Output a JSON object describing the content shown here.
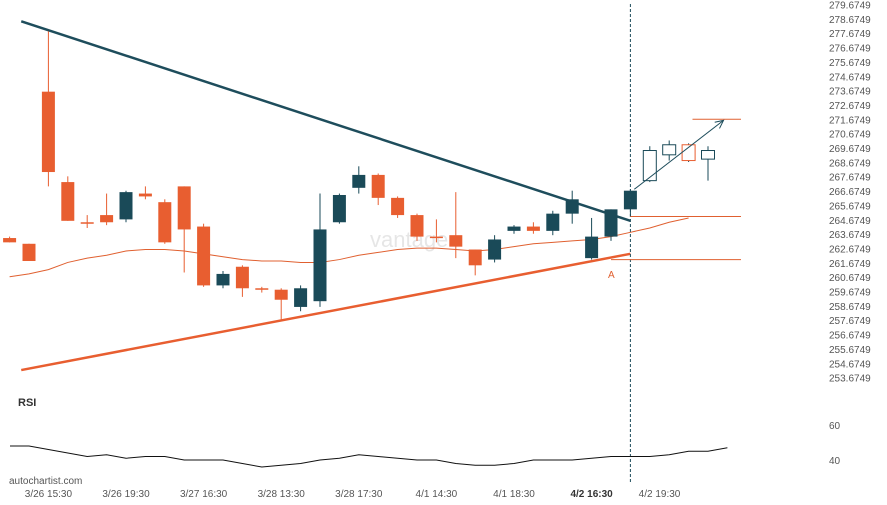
{
  "chart_data": {
    "type": "candlestick",
    "watermark": "vantage",
    "brand": "autochartist.com",
    "price_axis": {
      "ylim": [
        252.6749,
        279.9749
      ],
      "tick_labels": [
        "279.6749",
        "278.6749",
        "277.6749",
        "276.6749",
        "275.6749",
        "274.6749",
        "273.6749",
        "272.6749",
        "271.6749",
        "270.6749",
        "269.6749",
        "268.6749",
        "267.6749",
        "266.6749",
        "265.6749",
        "264.6749",
        "263.6749",
        "262.6749",
        "261.6749",
        "260.6749",
        "259.6749",
        "258.6749",
        "257.6749",
        "256.6749",
        "255.6749",
        "254.6749",
        "253.6749"
      ]
    },
    "time_axis": {
      "tick_labels": [
        {
          "label": "3/26 15:30",
          "index": 2
        },
        {
          "label": "3/26 19:30",
          "index": 6
        },
        {
          "label": "3/27 16:30",
          "index": 10
        },
        {
          "label": "3/28 13:30",
          "index": 14
        },
        {
          "label": "3/28 17:30",
          "index": 18
        },
        {
          "label": "4/1 14:30",
          "index": 22
        },
        {
          "label": "4/1 18:30",
          "index": 26
        },
        {
          "label": "4/2 16:30",
          "index": 30,
          "bold": true
        },
        {
          "label": "4/2 19:30",
          "index": 33.5
        }
      ]
    },
    "candles": [
      {
        "o": 263.4,
        "h": 263.5,
        "c": 263.1,
        "l": 263.1
      },
      {
        "o": 263.0,
        "h": 263.0,
        "c": 261.8,
        "l": 261.8
      },
      {
        "o": 273.6,
        "h": 277.8,
        "c": 268.0,
        "l": 267.0
      },
      {
        "o": 267.3,
        "h": 267.7,
        "c": 264.6,
        "l": 264.6
      },
      {
        "o": 264.5,
        "h": 265.0,
        "c": 264.4,
        "l": 264.1
      },
      {
        "o": 265.0,
        "h": 266.5,
        "c": 264.5,
        "l": 264.3
      },
      {
        "o": 264.7,
        "h": 266.7,
        "c": 266.6,
        "l": 264.5
      },
      {
        "o": 266.5,
        "h": 267.0,
        "c": 266.3,
        "l": 266.1
      },
      {
        "o": 265.9,
        "h": 266.1,
        "c": 263.1,
        "l": 263.0
      },
      {
        "o": 267.0,
        "h": 267.0,
        "c": 264.0,
        "l": 261.0
      },
      {
        "o": 264.2,
        "h": 264.4,
        "c": 260.1,
        "l": 260.0
      },
      {
        "o": 260.1,
        "h": 261.1,
        "c": 260.9,
        "l": 259.9
      },
      {
        "o": 261.4,
        "h": 261.5,
        "c": 259.9,
        "l": 259.3
      },
      {
        "o": 259.9,
        "h": 260.0,
        "c": 259.8,
        "l": 259.6
      },
      {
        "o": 259.8,
        "h": 259.9,
        "c": 259.1,
        "l": 257.6
      },
      {
        "o": 258.6,
        "h": 260.1,
        "c": 259.9,
        "l": 258.3
      },
      {
        "o": 259.0,
        "h": 266.5,
        "c": 264.0,
        "l": 258.6
      },
      {
        "o": 264.5,
        "h": 266.5,
        "c": 266.4,
        "l": 264.4
      },
      {
        "o": 266.9,
        "h": 268.4,
        "c": 267.8,
        "l": 266.5
      },
      {
        "o": 267.8,
        "h": 267.9,
        "c": 266.2,
        "l": 265.7
      },
      {
        "o": 266.2,
        "h": 266.3,
        "c": 265.0,
        "l": 264.8
      },
      {
        "o": 265.0,
        "h": 265.1,
        "c": 263.5,
        "l": 263.2
      },
      {
        "o": 263.5,
        "h": 264.7,
        "c": 263.4,
        "l": 263.1
      },
      {
        "o": 263.6,
        "h": 266.6,
        "c": 262.8,
        "l": 262.0
      },
      {
        "o": 262.6,
        "h": 262.6,
        "c": 261.5,
        "l": 260.8
      },
      {
        "o": 261.9,
        "h": 263.6,
        "c": 263.3,
        "l": 261.7
      },
      {
        "o": 263.9,
        "h": 264.3,
        "c": 264.2,
        "l": 263.7
      },
      {
        "o": 264.2,
        "h": 264.5,
        "c": 263.9,
        "l": 263.7
      },
      {
        "o": 263.9,
        "h": 265.3,
        "c": 265.1,
        "l": 263.6
      },
      {
        "o": 265.1,
        "h": 266.7,
        "c": 266.1,
        "l": 264.4
      },
      {
        "o": 262.0,
        "h": 264.8,
        "c": 263.5,
        "l": 261.9
      },
      {
        "o": 263.5,
        "h": 265.4,
        "c": 265.4,
        "l": 263.2
      },
      {
        "o": 265.4,
        "h": 266.8,
        "c": 266.7,
        "l": 264.9
      },
      {
        "o": 267.4,
        "h": 269.8,
        "c": 269.5,
        "l": 267.3,
        "projected": true
      },
      {
        "o": 269.2,
        "h": 270.2,
        "c": 269.9,
        "l": 268.8,
        "projected": true
      },
      {
        "o": 269.9,
        "h": 270.0,
        "c": 268.8,
        "l": 268.7,
        "projected": true
      },
      {
        "o": 268.9,
        "h": 269.8,
        "c": 269.5,
        "l": 267.4,
        "projected": true
      }
    ],
    "moving_average": [
      260.7,
      260.9,
      261.2,
      261.7,
      262.0,
      262.2,
      262.5,
      262.6,
      262.6,
      262.5,
      262.3,
      262.1,
      261.9,
      261.8,
      261.8,
      261.7,
      261.7,
      261.9,
      262.2,
      262.4,
      262.6,
      262.7,
      262.7,
      262.6,
      262.5,
      262.6,
      262.8,
      263.0,
      263.1,
      263.2,
      263.3,
      263.5,
      263.8,
      264.1,
      264.5,
      264.8
    ],
    "trend_lines": {
      "resistance": {
        "start": {
          "index": -0.4,
          "price": 278.5
        },
        "end": {
          "index": 31.0,
          "price": 264.6
        }
      },
      "support": {
        "start": {
          "index": -0.4,
          "price": 254.2
        },
        "end": {
          "index": 31.0,
          "price": 262.3
        }
      }
    },
    "projection": {
      "arrow": {
        "start": {
          "index": 31.2,
          "price": 266.8
        },
        "end": {
          "index": 35.8,
          "price": 271.6
        }
      },
      "levels": [
        {
          "price": 271.6749,
          "from_index": 34.2,
          "to_index": 36.7,
          "color": "#e06030"
        },
        {
          "price": 264.9,
          "from_index": 31.0,
          "to_index": 36.7,
          "color": "#e06030"
        },
        {
          "price": 261.9,
          "from_index": 30.0,
          "to_index": 36.7,
          "color": "#e06030"
        }
      ],
      "vertical_marker_index": 31.0
    },
    "annotation": {
      "text": "A",
      "index": 30.0,
      "price": 260.9
    },
    "rsi": {
      "label": "RSI",
      "tick_labels": [
        "60",
        "40"
      ],
      "tick_values": [
        60,
        40
      ],
      "ylim": [
        25,
        75
      ],
      "values": [
        48,
        48,
        46,
        44,
        42,
        43,
        41,
        42,
        42,
        40,
        40,
        40,
        38,
        36,
        37,
        38,
        40,
        41,
        43,
        42,
        41,
        40,
        40,
        38,
        37,
        37,
        38,
        40,
        40,
        40,
        41,
        42,
        42,
        42,
        43,
        45,
        45,
        47
      ]
    },
    "colors": {
      "bull": "#1a4a58",
      "bear": "#e85e30",
      "resistance": "#1e4d5c",
      "support": "#e85e30",
      "moving_average": "#e06030",
      "rsi_line": "#111111",
      "axis_text": "#555555",
      "marker": "#1e4d5c",
      "projected_outline": "#1a4a58"
    }
  }
}
